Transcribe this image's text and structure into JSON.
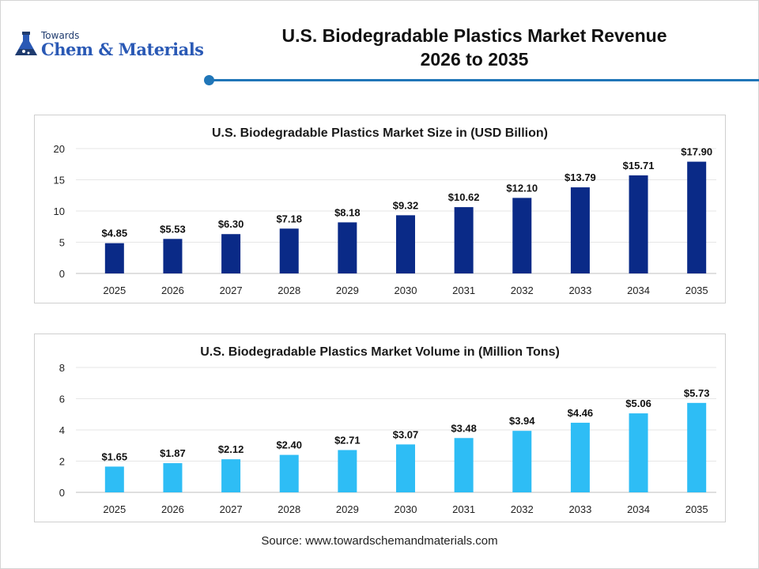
{
  "header": {
    "logo_small": "Towards",
    "logo_brand": "Chem & Materials",
    "title_line1": "U.S. Biodegradable Plastics Market Revenue",
    "title_line2": "2026 to 2035"
  },
  "footer": {
    "source": "Source: www.towardschemandmaterials.com"
  },
  "colors": {
    "accent": "#2076b8",
    "revenue_bar": "#0a2a87",
    "volume_bar": "#2ebdf5",
    "logo": "#2a59b5"
  },
  "chart_data": [
    {
      "type": "bar",
      "title": "U.S. Biodegradable Plastics Market Size in (USD Billion)",
      "categories": [
        "2025",
        "2026",
        "2027",
        "2028",
        "2029",
        "2030",
        "2031",
        "2032",
        "2033",
        "2034",
        "2035"
      ],
      "values": [
        4.85,
        5.53,
        6.3,
        7.18,
        8.18,
        9.32,
        10.62,
        12.1,
        13.79,
        15.71,
        17.9
      ],
      "labels": [
        "$4.85",
        "$5.53",
        "$6.30",
        "$7.18",
        "$8.18",
        "$9.32",
        "$10.62",
        "$12.10",
        "$13.79",
        "$15.71",
        "$17.90"
      ],
      "yticks": [
        "0",
        "5",
        "10",
        "15",
        "20"
      ],
      "ylim": [
        0,
        20
      ],
      "grid": true,
      "xlabel": "",
      "ylabel": ""
    },
    {
      "type": "bar",
      "title": "U.S. Biodegradable Plastics Market Volume in (Million Tons)",
      "categories": [
        "2025",
        "2026",
        "2027",
        "2028",
        "2029",
        "2030",
        "2031",
        "2032",
        "2033",
        "2034",
        "2035"
      ],
      "values": [
        1.65,
        1.87,
        2.12,
        2.4,
        2.71,
        3.07,
        3.48,
        3.94,
        4.46,
        5.06,
        5.73
      ],
      "labels": [
        "$1.65",
        "$1.87",
        "$2.12",
        "$2.40",
        "$2.71",
        "$3.07",
        "$3.48",
        "$3.94",
        "$4.46",
        "$5.06",
        "$5.73"
      ],
      "yticks": [
        "0",
        "2",
        "4",
        "6",
        "8"
      ],
      "ylim": [
        0,
        8
      ],
      "grid": true,
      "xlabel": "",
      "ylabel": ""
    }
  ]
}
